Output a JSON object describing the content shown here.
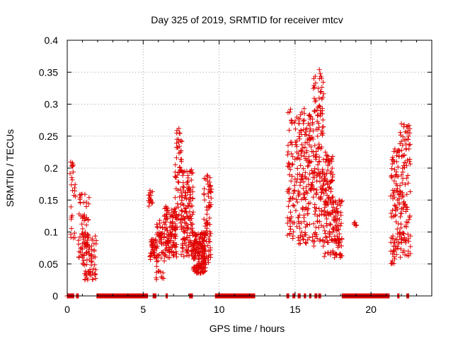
{
  "chart_data": {
    "type": "scatter",
    "title": "Day 325 of 2019, SRMTID for receiver mtcv",
    "xlabel": "GPS time / hours",
    "ylabel": "SRMTID / TECUs",
    "xlim": [
      0,
      24
    ],
    "ylim": [
      0,
      0.4
    ],
    "grid": true,
    "marker": "+",
    "colors": {
      "points": "#e00000",
      "axis": "#000000",
      "grid": "#a0a0a0"
    },
    "x_ticks": [
      {
        "value": 0,
        "label": "0"
      },
      {
        "value": 5,
        "label": "5"
      },
      {
        "value": 10,
        "label": "10"
      },
      {
        "value": 15,
        "label": "15"
      },
      {
        "value": 20,
        "label": "20"
      }
    ],
    "y_ticks": [
      {
        "value": 0,
        "label": "0"
      },
      {
        "value": 0.05,
        "label": "0.05"
      },
      {
        "value": 0.1,
        "label": "0.1"
      },
      {
        "value": 0.15,
        "label": "0.15"
      },
      {
        "value": 0.2,
        "label": "0.2"
      },
      {
        "value": 0.25,
        "label": "0.25"
      },
      {
        "value": 0.3,
        "label": "0.3"
      },
      {
        "value": 0.35,
        "label": "0.35"
      },
      {
        "value": 0.4,
        "label": "0.4"
      }
    ],
    "segments": [
      {
        "x0": 0.2,
        "x1": 0.55,
        "ymin": 0.09,
        "ymax": 0.21,
        "step": 0.03
      },
      {
        "x0": 0.75,
        "x1": 1.45,
        "ymin": 0.06,
        "ymax": 0.16,
        "step": 0.025
      },
      {
        "x0": 1.0,
        "x1": 1.9,
        "ymin": 0.025,
        "ymax": 0.1,
        "step": 0.025
      },
      {
        "x0": 5.35,
        "x1": 5.6,
        "ymin": 0.14,
        "ymax": 0.165,
        "step": 0.04
      },
      {
        "x0": 5.45,
        "x1": 5.9,
        "ymin": 0.055,
        "ymax": 0.09,
        "step": 0.025
      },
      {
        "x0": 5.85,
        "x1": 6.4,
        "ymin": 0.025,
        "ymax": 0.12,
        "step": 0.02
      },
      {
        "x0": 6.4,
        "x1": 7.2,
        "ymin": 0.06,
        "ymax": 0.14,
        "step": 0.013
      },
      {
        "x0": 7.1,
        "x1": 7.55,
        "ymin": 0.1,
        "ymax": 0.26,
        "step": 0.014
      },
      {
        "x0": 7.5,
        "x1": 8.3,
        "ymin": 0.06,
        "ymax": 0.2,
        "step": 0.012
      },
      {
        "x0": 8.3,
        "x1": 9.1,
        "ymin": 0.035,
        "ymax": 0.1,
        "step": 0.01
      },
      {
        "x0": 9.0,
        "x1": 9.5,
        "ymin": 0.05,
        "ymax": 0.19,
        "step": 0.014
      },
      {
        "x0": 14.5,
        "x1": 15.2,
        "ymin": 0.09,
        "ymax": 0.29,
        "step": 0.016
      },
      {
        "x0": 15.2,
        "x1": 16.2,
        "ymin": 0.08,
        "ymax": 0.29,
        "step": 0.012
      },
      {
        "x0": 16.2,
        "x1": 16.9,
        "ymin": 0.07,
        "ymax": 0.35,
        "step": 0.011
      },
      {
        "x0": 16.9,
        "x1": 17.5,
        "ymin": 0.06,
        "ymax": 0.22,
        "step": 0.012
      },
      {
        "x0": 17.5,
        "x1": 18.1,
        "ymin": 0.06,
        "ymax": 0.15,
        "step": 0.016
      },
      {
        "x0": 18.9,
        "x1": 19.1,
        "ymin": 0.11,
        "ymax": 0.12,
        "step": 0.12
      },
      {
        "x0": 21.3,
        "x1": 21.9,
        "ymin": 0.05,
        "ymax": 0.23,
        "step": 0.014
      },
      {
        "x0": 21.9,
        "x1": 22.6,
        "ymin": 0.06,
        "ymax": 0.27,
        "step": 0.014
      }
    ],
    "points": [
      [
        0.35,
        0.208
      ],
      [
        0.4,
        0.205
      ],
      [
        0.3,
        0.185
      ],
      [
        0.35,
        0.165
      ],
      [
        1.3,
        0.028
      ],
      [
        5.45,
        0.165
      ],
      [
        5.5,
        0.15
      ],
      [
        5.55,
        0.145
      ],
      [
        6.2,
        0.03
      ],
      [
        6.25,
        0.028
      ],
      [
        7.35,
        0.262
      ],
      [
        7.4,
        0.255
      ],
      [
        7.3,
        0.232
      ],
      [
        7.45,
        0.225
      ],
      [
        9.4,
        0.185
      ],
      [
        14.7,
        0.292
      ],
      [
        14.8,
        0.27
      ],
      [
        14.75,
        0.275
      ],
      [
        14.85,
        0.218
      ],
      [
        14.8,
        0.205
      ],
      [
        14.5,
        0.095
      ],
      [
        15.6,
        0.293
      ],
      [
        15.6,
        0.275
      ],
      [
        15.7,
        0.26
      ],
      [
        16.0,
        0.245
      ],
      [
        16.6,
        0.354
      ],
      [
        16.65,
        0.348
      ],
      [
        16.62,
        0.34
      ],
      [
        16.5,
        0.295
      ],
      [
        16.55,
        0.27
      ],
      [
        16.7,
        0.286
      ],
      [
        16.8,
        0.285
      ],
      [
        17.0,
        0.225
      ],
      [
        17.6,
        0.06
      ],
      [
        17.7,
        0.065
      ],
      [
        18.95,
        0.115
      ],
      [
        19.0,
        0.11
      ],
      [
        21.4,
        0.055
      ],
      [
        21.3,
        0.07
      ],
      [
        22.1,
        0.068
      ],
      [
        22.5,
        0.267
      ],
      [
        22.55,
        0.255
      ],
      [
        22.45,
        0.245
      ],
      [
        22.5,
        0.23
      ],
      [
        21.8,
        0.228
      ]
    ],
    "zero_bands": [
      [
        0.0,
        0.45
      ],
      [
        0.6,
        0.75
      ],
      [
        1.95,
        5.3
      ],
      [
        5.65,
        5.85
      ],
      [
        6.5,
        6.6
      ],
      [
        8.05,
        8.25
      ],
      [
        9.75,
        12.35
      ],
      [
        14.45,
        14.6
      ],
      [
        14.85,
        15.0
      ],
      [
        15.2,
        15.35
      ],
      [
        15.6,
        15.7
      ],
      [
        15.95,
        16.05
      ],
      [
        16.3,
        16.45
      ],
      [
        16.55,
        16.7
      ],
      [
        18.1,
        21.2
      ],
      [
        21.75,
        21.85
      ],
      [
        22.35,
        22.5
      ]
    ]
  }
}
